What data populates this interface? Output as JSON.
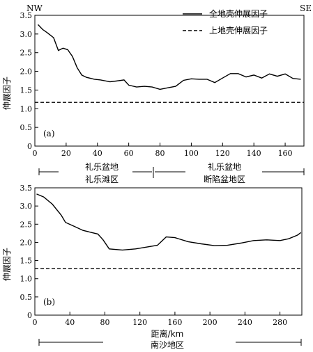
{
  "chart_data": [
    {
      "type": "line",
      "panel_label": "(a)",
      "ylabel": "伸展因子",
      "xlim": [
        0,
        172
      ],
      "ylim": [
        0,
        3.5
      ],
      "xticks": [
        "0",
        "20",
        "40",
        "60",
        "80",
        "100",
        "120",
        "140",
        "160"
      ],
      "yticks": [
        "0",
        "0.5",
        "1.0",
        "1.5",
        "2.0",
        "2.5",
        "3.0",
        "3.5"
      ],
      "corner_left": "NW",
      "corner_right": "SE",
      "legend": {
        "position": "top-right",
        "entries": [
          "全地壳伸展因子",
          "上地壳伸展因子"
        ]
      },
      "series": [
        {
          "name": "全地壳伸展因子",
          "style": "solid",
          "x": [
            2,
            5,
            8,
            12,
            15,
            18,
            21,
            24,
            27,
            30,
            33,
            38,
            42,
            48,
            52,
            57,
            60,
            65,
            70,
            75,
            80,
            85,
            90,
            95,
            100,
            105,
            110,
            115,
            120,
            125,
            130,
            135,
            140,
            145,
            150,
            155,
            160,
            165,
            170
          ],
          "y": [
            3.25,
            3.12,
            3.03,
            2.9,
            2.56,
            2.62,
            2.58,
            2.4,
            2.1,
            1.9,
            1.84,
            1.79,
            1.77,
            1.72,
            1.74,
            1.77,
            1.63,
            1.58,
            1.6,
            1.58,
            1.52,
            1.56,
            1.6,
            1.76,
            1.8,
            1.79,
            1.79,
            1.7,
            1.82,
            1.94,
            1.94,
            1.85,
            1.9,
            1.82,
            1.93,
            1.87,
            1.93,
            1.81,
            1.79
          ]
        },
        {
          "name": "上地壳伸展因子",
          "style": "dashed",
          "x": [
            0,
            172
          ],
          "y": [
            1.17,
            1.17
          ]
        }
      ]
    },
    {
      "type": "line",
      "panel_label": "(b)",
      "ylabel": "伸展因子",
      "xlabel": "距离/km",
      "xlim": [
        0,
        305
      ],
      "ylim": [
        0,
        3.5
      ],
      "xticks": [
        "0",
        "40",
        "80",
        "120",
        "160",
        "200",
        "240",
        "280"
      ],
      "yticks": [
        "0",
        "0.5",
        "1.0",
        "1.5",
        "2.0",
        "2.5",
        "3.0",
        "3.5"
      ],
      "series": [
        {
          "name": "全地壳伸展因子",
          "style": "solid",
          "x": [
            2,
            10,
            20,
            30,
            35,
            45,
            55,
            65,
            72,
            78,
            85,
            100,
            115,
            130,
            140,
            150,
            160,
            175,
            190,
            205,
            220,
            235,
            250,
            265,
            280,
            290,
            300,
            304
          ],
          "y": [
            3.33,
            3.25,
            3.05,
            2.75,
            2.55,
            2.44,
            2.33,
            2.27,
            2.23,
            2.07,
            1.82,
            1.79,
            1.82,
            1.88,
            1.92,
            2.15,
            2.13,
            2.02,
            1.96,
            1.91,
            1.92,
            1.98,
            2.05,
            2.07,
            2.05,
            2.1,
            2.2,
            2.27
          ]
        },
        {
          "name": "上地壳伸展因子",
          "style": "dashed",
          "x": [
            0,
            305
          ],
          "y": [
            1.28,
            1.28
          ]
        }
      ]
    }
  ],
  "region_labels": {
    "basin_a_left_line1": "礼乐盆地",
    "basin_a_left_line2": "礼乐滩区",
    "basin_a_right_line1": "礼乐盆地",
    "basin_a_right_line2": "断陷盆地区",
    "region_b": "南沙地区"
  }
}
